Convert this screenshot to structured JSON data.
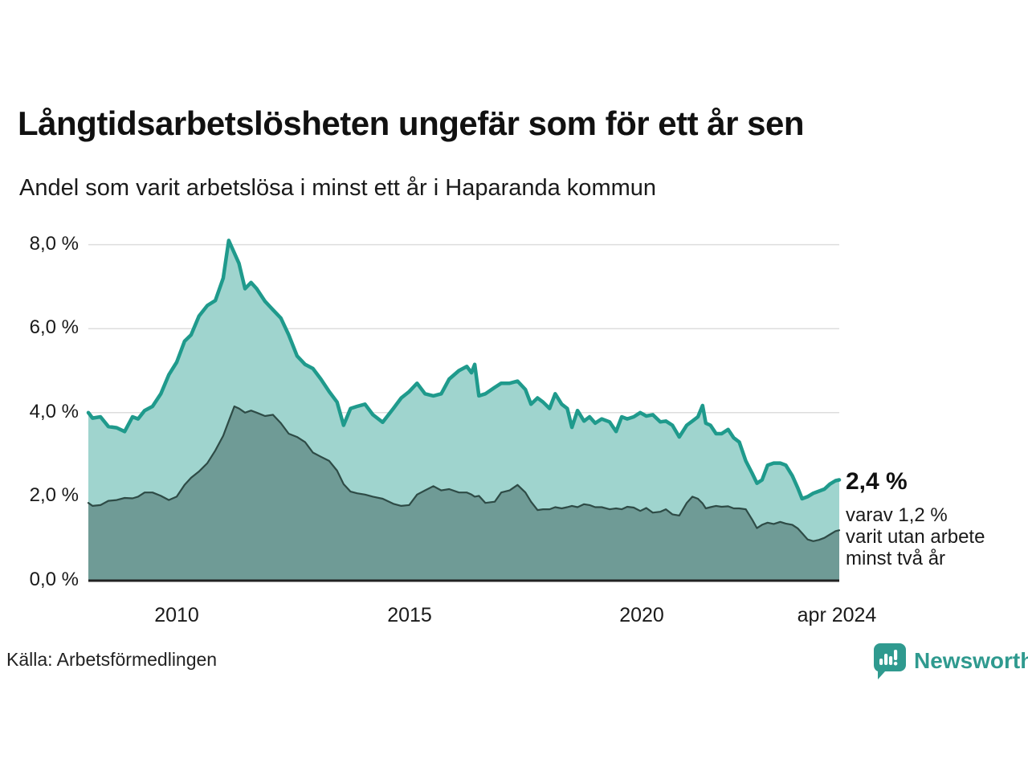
{
  "title": "Långtidsarbetslösheten ungefär som för ett år sen",
  "subtitle": "Andel som varit arbetslösa i minst ett år i Haparanda kommun",
  "annotation": {
    "value_label": "2,4 %",
    "detail_lines": [
      "varav 1,2 %",
      "varit utan arbete",
      "minst två år"
    ]
  },
  "source": "Källa: Arbetsförmedlingen",
  "brand": {
    "name": "Newsworthy",
    "icon": "bar-chart-speech-bubble-icon",
    "color": "#2f9a8f"
  },
  "colors": {
    "accent_line": "#1f9a8c",
    "area_total_fill": "#9fd4ce",
    "area_two_year_fill": "#6f9b96",
    "area_two_year_line": "#2e4b46",
    "axis": "#222222",
    "grid": "#dddddd"
  },
  "chart_data": {
    "type": "area",
    "title": "Långtidsarbetslösheten ungefär som för ett år sen",
    "subtitle": "Andel som varit arbetslösa i minst ett år i Haparanda kommun",
    "xlabel": "",
    "ylabel": "",
    "unit": "%",
    "xlim": [
      2008.1,
      2024.25
    ],
    "ylim": [
      0,
      8.5
    ],
    "grid": "horizontal",
    "legend": "none",
    "y_tick_values": [
      0,
      2,
      4,
      6,
      8
    ],
    "y_tick_labels": [
      "0,0 %",
      "2,0 %",
      "4,0 %",
      "6,0 %",
      "8,0 %"
    ],
    "x_tick_years": [
      2010,
      2015,
      2020,
      2024.25
    ],
    "x_tick_labels": [
      "2010",
      "2015",
      "2020",
      "apr 2024"
    ],
    "x": [
      2008.1,
      2008.19,
      2008.36,
      2008.53,
      2008.71,
      2008.88,
      2009.05,
      2009.17,
      2009.31,
      2009.48,
      2009.66,
      2009.83,
      2010.0,
      2010.17,
      2010.31,
      2010.48,
      2010.66,
      2010.83,
      2011.0,
      2011.12,
      2011.24,
      2011.34,
      2011.47,
      2011.6,
      2011.72,
      2011.9,
      2012.07,
      2012.24,
      2012.41,
      2012.59,
      2012.76,
      2012.93,
      2013.1,
      2013.28,
      2013.45,
      2013.59,
      2013.74,
      2013.88,
      2014.05,
      2014.22,
      2014.43,
      2014.66,
      2014.83,
      2015.0,
      2015.17,
      2015.34,
      2015.52,
      2015.69,
      2015.86,
      2016.07,
      2016.24,
      2016.34,
      2016.41,
      2016.5,
      2016.64,
      2016.84,
      2016.98,
      2017.16,
      2017.33,
      2017.5,
      2017.62,
      2017.76,
      2017.88,
      2018.02,
      2018.14,
      2018.28,
      2018.4,
      2018.5,
      2018.62,
      2018.76,
      2018.88,
      2019.0,
      2019.14,
      2019.31,
      2019.45,
      2019.57,
      2019.69,
      2019.83,
      2019.97,
      2020.1,
      2020.24,
      2020.4,
      2020.52,
      2020.66,
      2020.81,
      2020.97,
      2021.09,
      2021.21,
      2021.31,
      2021.38,
      2021.48,
      2021.6,
      2021.72,
      2021.86,
      2021.98,
      2022.1,
      2022.24,
      2022.38,
      2022.48,
      2022.59,
      2022.71,
      2022.84,
      2022.98,
      2023.1,
      2023.24,
      2023.36,
      2023.45,
      2023.57,
      2023.69,
      2023.81,
      2023.93,
      2024.05,
      2024.17,
      2024.25
    ],
    "series": [
      {
        "name": "Arbetslösa minst ett år",
        "last_value": 2.4,
        "values": [
          4.0,
          3.87,
          3.9,
          3.67,
          3.64,
          3.55,
          3.9,
          3.85,
          4.05,
          4.15,
          4.45,
          4.9,
          5.2,
          5.7,
          5.85,
          6.3,
          6.55,
          6.67,
          7.2,
          8.1,
          7.8,
          7.55,
          6.95,
          7.1,
          6.95,
          6.65,
          6.45,
          6.25,
          5.85,
          5.35,
          5.15,
          5.05,
          4.8,
          4.5,
          4.25,
          3.7,
          4.1,
          4.15,
          4.2,
          3.95,
          3.77,
          4.1,
          4.35,
          4.5,
          4.7,
          4.45,
          4.4,
          4.45,
          4.8,
          5.0,
          5.1,
          4.95,
          5.15,
          4.4,
          4.45,
          4.6,
          4.7,
          4.7,
          4.75,
          4.55,
          4.2,
          4.35,
          4.25,
          4.1,
          4.45,
          4.2,
          4.1,
          3.65,
          4.05,
          3.8,
          3.9,
          3.75,
          3.85,
          3.78,
          3.55,
          3.9,
          3.85,
          3.9,
          4.0,
          3.92,
          3.95,
          3.78,
          3.8,
          3.7,
          3.42,
          3.7,
          3.8,
          3.9,
          4.17,
          3.75,
          3.7,
          3.5,
          3.5,
          3.6,
          3.4,
          3.3,
          2.85,
          2.55,
          2.32,
          2.4,
          2.75,
          2.8,
          2.8,
          2.75,
          2.5,
          2.2,
          1.95,
          2.0,
          2.08,
          2.13,
          2.18,
          2.3,
          2.38,
          2.4
        ]
      },
      {
        "name": "Varav utan arbete minst två år",
        "last_value": 1.2,
        "values": [
          1.85,
          1.78,
          1.8,
          1.9,
          1.92,
          1.97,
          1.96,
          2.0,
          2.1,
          2.1,
          2.02,
          1.92,
          2.0,
          2.28,
          2.45,
          2.6,
          2.8,
          3.1,
          3.45,
          3.8,
          4.15,
          4.1,
          4.0,
          4.05,
          4.0,
          3.92,
          3.95,
          3.75,
          3.5,
          3.42,
          3.3,
          3.05,
          2.95,
          2.85,
          2.62,
          2.3,
          2.12,
          2.08,
          2.05,
          2.0,
          1.95,
          1.83,
          1.78,
          1.8,
          2.05,
          2.15,
          2.25,
          2.15,
          2.18,
          2.1,
          2.1,
          2.05,
          2.0,
          2.02,
          1.85,
          1.88,
          2.1,
          2.15,
          2.28,
          2.1,
          1.88,
          1.68,
          1.7,
          1.7,
          1.75,
          1.72,
          1.75,
          1.78,
          1.75,
          1.82,
          1.8,
          1.75,
          1.75,
          1.7,
          1.72,
          1.7,
          1.76,
          1.74,
          1.66,
          1.73,
          1.62,
          1.64,
          1.7,
          1.58,
          1.55,
          1.85,
          2.0,
          1.95,
          1.84,
          1.72,
          1.75,
          1.78,
          1.76,
          1.77,
          1.72,
          1.72,
          1.7,
          1.45,
          1.25,
          1.33,
          1.38,
          1.35,
          1.4,
          1.36,
          1.33,
          1.24,
          1.13,
          0.98,
          0.94,
          0.97,
          1.02,
          1.1,
          1.18,
          1.2
        ]
      }
    ]
  }
}
